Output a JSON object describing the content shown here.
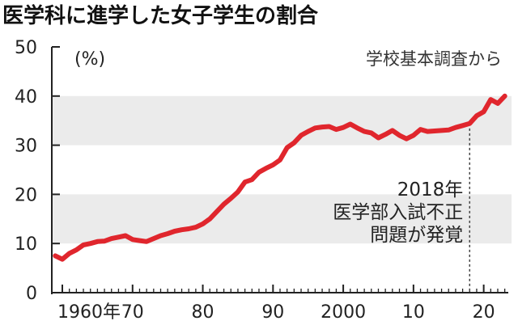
{
  "chart_data": {
    "type": "line",
    "title": "医学科に進学した女子学生の割合",
    "unit_label": "(%)",
    "source": "学校基本調査から",
    "ylim": [
      0,
      50
    ],
    "yticks": [
      "0",
      "10",
      "20",
      "30",
      "40",
      "50"
    ],
    "xlim": [
      1958.5,
      2023.5
    ],
    "xticks": [
      {
        "label": "1960年",
        "x": 1960
      },
      {
        "label": "70",
        "x": 1970
      },
      {
        "label": "80",
        "x": 1980
      },
      {
        "label": "90",
        "x": 1990
      },
      {
        "label": "2000",
        "x": 2000
      },
      {
        "label": "10",
        "x": 2010
      },
      {
        "label": "20",
        "x": 2020
      }
    ],
    "shaded_bands": [
      [
        10,
        20
      ],
      [
        30,
        40
      ]
    ],
    "line_color": "#e0262d",
    "band_color": "#ebebeb",
    "series": [
      {
        "x": [
          1959,
          1960,
          1961,
          1962,
          1963,
          1964,
          1965,
          1966,
          1967,
          1968,
          1969,
          1970,
          1971,
          1972,
          1973,
          1974,
          1975,
          1976,
          1977,
          1978,
          1979,
          1980,
          1981,
          1982,
          1983,
          1984,
          1985,
          1986,
          1987,
          1988,
          1989,
          1990,
          1991,
          1992,
          1993,
          1994,
          1995,
          1996,
          1997,
          1998,
          1999,
          2000,
          2001,
          2002,
          2003,
          2004,
          2005,
          2006,
          2007,
          2008,
          2009,
          2010,
          2011,
          2012,
          2013,
          2014,
          2015,
          2016,
          2017,
          2018,
          2019,
          2020,
          2021,
          2022,
          2023
        ],
        "values": [
          7.5,
          6.8,
          8.0,
          8.7,
          9.7,
          10.0,
          10.4,
          10.5,
          11.0,
          11.3,
          11.6,
          10.8,
          10.6,
          10.4,
          11.0,
          11.6,
          12.0,
          12.5,
          12.8,
          13.0,
          13.3,
          14.0,
          15.0,
          16.5,
          18.0,
          19.2,
          20.5,
          22.5,
          23.0,
          24.5,
          25.3,
          26.0,
          27.0,
          29.5,
          30.5,
          32.0,
          32.8,
          33.5,
          33.7,
          33.8,
          33.2,
          33.6,
          34.3,
          33.5,
          32.8,
          32.5,
          31.5,
          32.2,
          33.0,
          32.0,
          31.3,
          32.0,
          33.2,
          32.8,
          32.9,
          33.0,
          33.1,
          33.6,
          34.0,
          34.4,
          36.0,
          36.8,
          39.3,
          38.5,
          40.0
        ]
      }
    ],
    "annotation": {
      "x": 2018,
      "lines": [
        "2018年",
        "医学部入試不正",
        "問題が発覚"
      ]
    }
  }
}
